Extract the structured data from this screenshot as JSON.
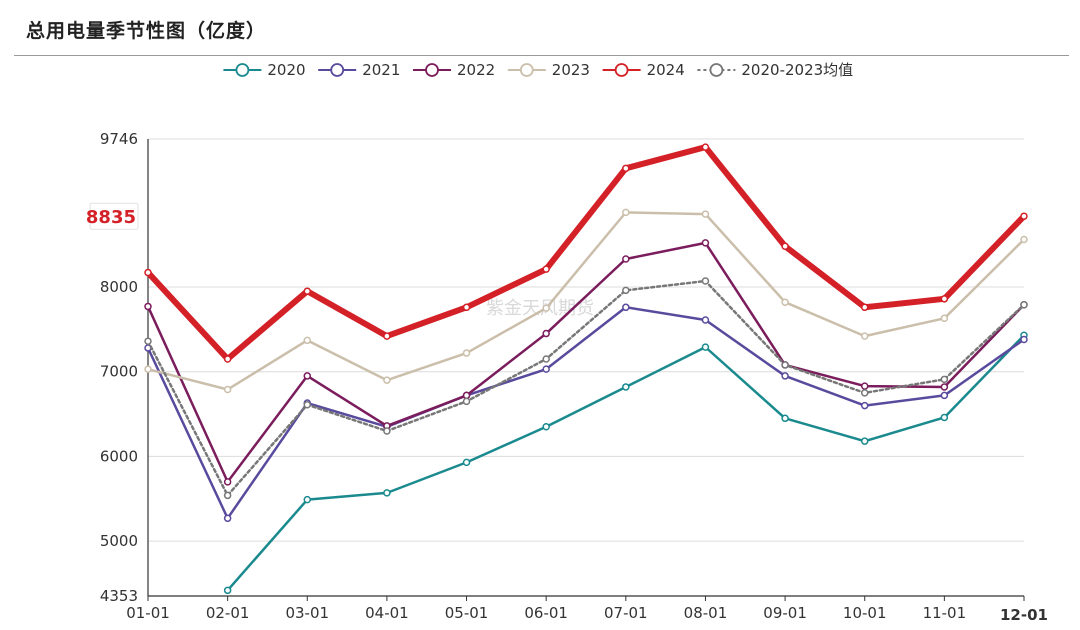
{
  "chart_data": {
    "type": "line",
    "title": "总用电量季节性图（亿度）",
    "watermark": "紫金天风期货",
    "categories": [
      "01-01",
      "02-01",
      "03-01",
      "04-01",
      "05-01",
      "06-01",
      "07-01",
      "08-01",
      "09-01",
      "10-01",
      "11-01",
      "12-01"
    ],
    "highlight_category": "12-01",
    "ylim": [
      4353,
      9746
    ],
    "yticks": [
      4353,
      5000,
      6000,
      7000,
      8000,
      9746
    ],
    "highlight_value": 8835,
    "grid": true,
    "legend_position": "top-center",
    "series": [
      {
        "name": "2020",
        "color": "#1a8a8f",
        "dash": "",
        "values": [
          null,
          4420,
          5490,
          5570,
          5930,
          6350,
          6820,
          7290,
          6450,
          6180,
          6460,
          7430
        ]
      },
      {
        "name": "2021",
        "color": "#5a4a9e",
        "dash": "",
        "values": [
          7280,
          5270,
          6630,
          6350,
          6720,
          7030,
          7760,
          7610,
          6950,
          6600,
          6720,
          7380
        ]
      },
      {
        "name": "2022",
        "color": "#7b1d5c",
        "dash": "",
        "values": [
          7770,
          5700,
          6950,
          6360,
          6720,
          7450,
          8330,
          8520,
          7080,
          6830,
          6820,
          7790
        ]
      },
      {
        "name": "2023",
        "color": "#cbbfab",
        "dash": "",
        "values": [
          7030,
          6790,
          7370,
          6900,
          7220,
          7750,
          8880,
          8860,
          7820,
          7420,
          7630,
          8560
        ]
      },
      {
        "name": "2024",
        "color": "#d42027",
        "dash": "",
        "width": 6,
        "values": [
          8170,
          7150,
          7950,
          7420,
          7760,
          8210,
          9400,
          9650,
          8480,
          7760,
          7860,
          8835
        ]
      },
      {
        "name": "2020-2023均值",
        "color": "#777777",
        "dash": "3,3",
        "values": [
          7360,
          5540,
          6610,
          6300,
          6650,
          7150,
          7960,
          8070,
          7080,
          6750,
          6910,
          7790
        ]
      }
    ]
  }
}
